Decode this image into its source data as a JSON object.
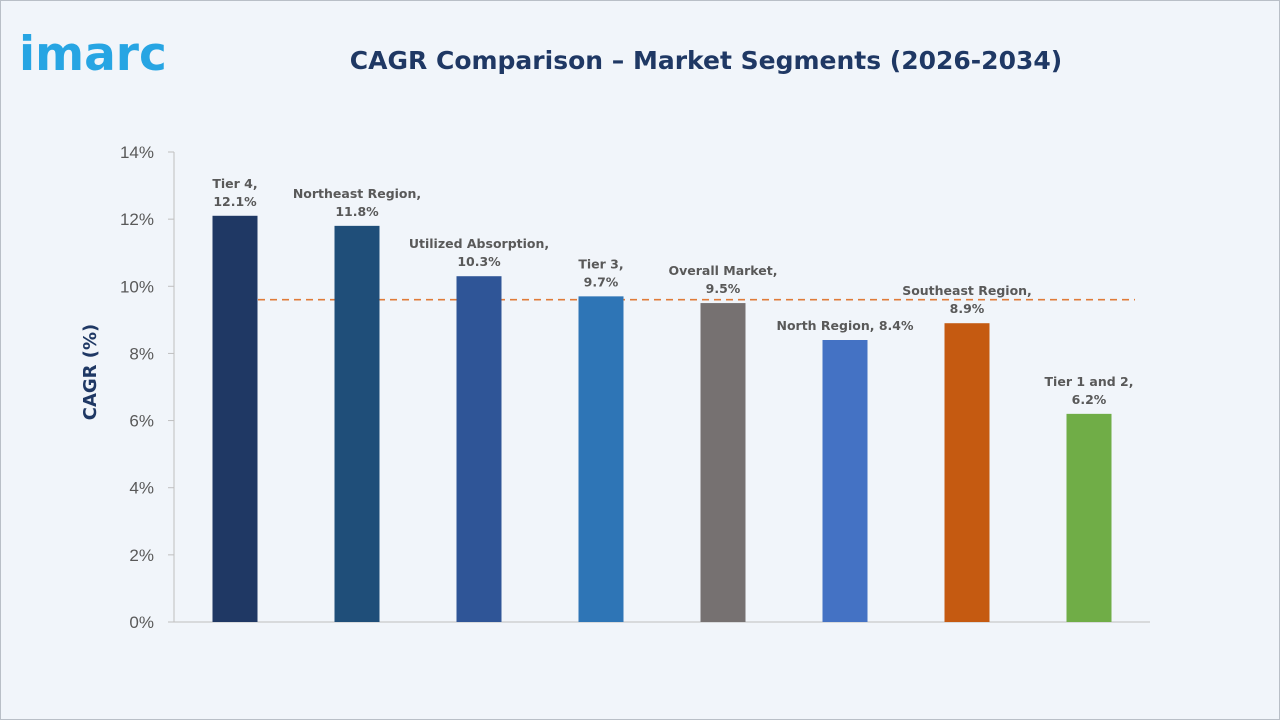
{
  "logo": {
    "text": "imarc"
  },
  "chart_data": {
    "type": "bar",
    "title": "CAGR Comparison – Market Segments (2026-2034)",
    "ylabel": "CAGR (%)",
    "xlabel": "",
    "ylim": [
      0,
      14
    ],
    "yticks": [
      "0%",
      "2%",
      "4%",
      "6%",
      "8%",
      "10%",
      "12%",
      "14%"
    ],
    "categories": [
      "Tier 4",
      "Northeast Region",
      "Utilized Absorption",
      "Tier 3",
      "Overall Market",
      "North Region",
      "Southeast Region",
      "Tier 1 and 2"
    ],
    "values": [
      12.1,
      11.8,
      10.3,
      9.7,
      9.5,
      8.4,
      8.9,
      6.2
    ],
    "data_labels": [
      [
        "Tier 4,",
        "12.1%"
      ],
      [
        "Northeast Region,",
        "11.8%"
      ],
      [
        "Utilized Absorption,",
        "10.3%"
      ],
      [
        "Tier 3,",
        "9.7%"
      ],
      [
        "Overall Market,",
        "9.5%"
      ],
      [
        "North Region, 8.4%"
      ],
      [
        "Southeast Region,",
        "8.9%"
      ],
      [
        "Tier 1 and 2,",
        "6.2%"
      ]
    ],
    "colors": [
      "#1f3864",
      "#1f4e79",
      "#2f5597",
      "#2e75b6",
      "#767171",
      "#4472c4",
      "#c55a11",
      "#70ad47"
    ],
    "reference_line": {
      "value": 9.6,
      "style": "dashed",
      "color": "#e07b39"
    },
    "grid": false,
    "legend": "none"
  }
}
